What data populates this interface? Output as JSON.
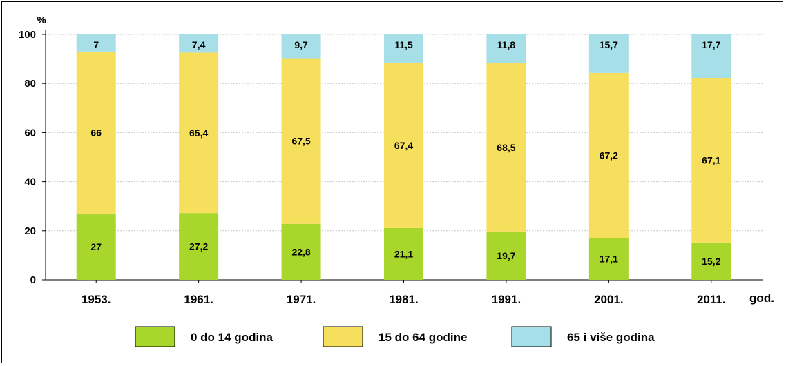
{
  "chart_data": {
    "type": "bar",
    "stacked": true,
    "title": "",
    "ylabel": "%",
    "xlabel": "god.",
    "ylim": [
      0,
      100
    ],
    "yticks": [
      0,
      20,
      40,
      60,
      80,
      100
    ],
    "grid": true,
    "legend_position": "bottom",
    "categories": [
      "1953.",
      "1961.",
      "1971.",
      "1981.",
      "1991.",
      "2001.",
      "2011."
    ],
    "series": [
      {
        "name": "0 do 14 godina",
        "color": "#a8d62a",
        "values": [
          27,
          27.2,
          22.8,
          21.1,
          19.7,
          17.1,
          15.2
        ],
        "labels": [
          "27",
          "27,2",
          "22,8",
          "21,1",
          "19,7",
          "17,1",
          "15,2"
        ]
      },
      {
        "name": "15 do 64 godine",
        "color": "#f7df5e",
        "values": [
          66,
          65.4,
          67.5,
          67.4,
          68.5,
          67.2,
          67.1
        ],
        "labels": [
          "66",
          "65,4",
          "67,5",
          "67,4",
          "68,5",
          "67,2",
          "67,1"
        ]
      },
      {
        "name": "65 i više godina",
        "color": "#a6dfe8",
        "values": [
          7,
          7.4,
          9.7,
          11.5,
          11.8,
          15.7,
          17.7
        ],
        "labels": [
          "7",
          "7,4",
          "9,7",
          "11,5",
          "11,8",
          "15,7",
          "17,7"
        ]
      }
    ]
  }
}
